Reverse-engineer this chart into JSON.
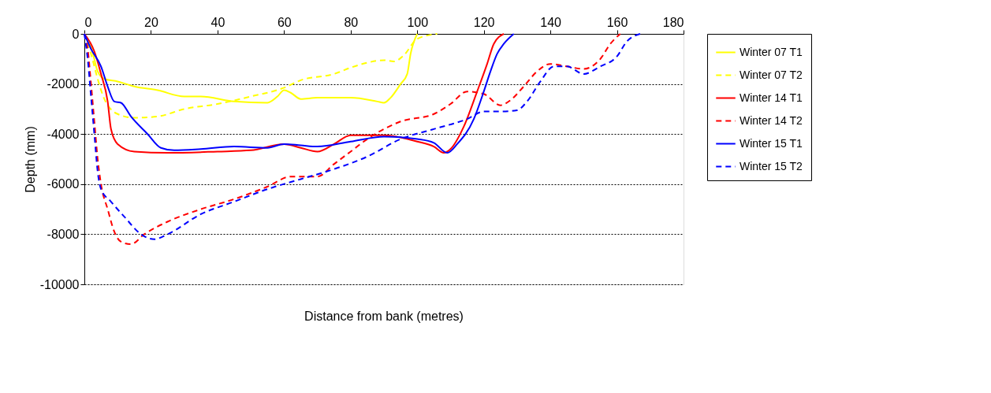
{
  "chart_data": {
    "type": "line",
    "xlabel": "Distance from bank (metres)",
    "ylabel": "Depth (mm)",
    "xlim": [
      0,
      180
    ],
    "xticks": [
      0,
      20,
      40,
      60,
      80,
      100,
      120,
      140,
      160,
      180
    ],
    "ylim": [
      -10000,
      0
    ],
    "yticks": [
      -10000,
      -8000,
      -6000,
      -4000,
      -2000,
      0
    ],
    "grid": "y",
    "legend": "right",
    "marker": "none",
    "series": [
      {
        "name": "Winter 07 T1",
        "color": "#ffff00",
        "line_style": "solid",
        "x": [
          0,
          2,
          4,
          6,
          10,
          15,
          22,
          30,
          35,
          45,
          55,
          58,
          60,
          62,
          65,
          70,
          80,
          88,
          90,
          92,
          95,
          97,
          98,
          100
        ],
        "values": [
          0,
          -500,
          -1500,
          -1800,
          -1900,
          -2100,
          -2250,
          -2500,
          -2500,
          -2700,
          -2750,
          -2500,
          -2250,
          -2350,
          -2600,
          -2550,
          -2550,
          -2700,
          -2750,
          -2550,
          -2000,
          -1600,
          -800,
          0
        ]
      },
      {
        "name": "Winter 07 T2",
        "color": "#ffff00",
        "line_style": "dashed",
        "x": [
          0,
          2,
          4,
          6,
          10,
          15,
          22,
          30,
          40,
          50,
          60,
          65,
          75,
          80,
          85,
          90,
          93,
          96,
          100,
          106
        ],
        "values": [
          0,
          -800,
          -1800,
          -2600,
          -3200,
          -3350,
          -3300,
          -3000,
          -2800,
          -2500,
          -2150,
          -1850,
          -1600,
          -1350,
          -1150,
          -1050,
          -1100,
          -850,
          -200,
          0
        ]
      },
      {
        "name": "Winter 14 T1",
        "color": "#ff0000",
        "line_style": "solid",
        "x": [
          0,
          3,
          5,
          7,
          8,
          10,
          15,
          25,
          40,
          50,
          60,
          65,
          70,
          75,
          80,
          90,
          100,
          105,
          108,
          110,
          114,
          118,
          121,
          123,
          126
        ],
        "values": [
          0,
          -700,
          -1600,
          -2700,
          -3800,
          -4400,
          -4700,
          -4750,
          -4700,
          -4650,
          -4400,
          -4550,
          -4700,
          -4400,
          -4050,
          -4050,
          -4300,
          -4500,
          -4750,
          -4600,
          -3700,
          -2300,
          -1200,
          -400,
          0
        ]
      },
      {
        "name": "Winter 14 T2",
        "color": "#ff0000",
        "line_style": "dashed",
        "x": [
          0,
          1,
          2,
          3,
          4,
          5,
          7,
          9,
          11,
          14,
          18,
          25,
          35,
          45,
          55,
          62,
          70,
          75,
          80,
          85,
          90,
          95,
          105,
          110,
          115,
          120,
          125,
          128,
          132,
          136,
          140,
          145,
          150,
          155,
          158,
          161
        ],
        "values": [
          0,
          -600,
          -2000,
          -3500,
          -5000,
          -6000,
          -7000,
          -7900,
          -8300,
          -8400,
          -8000,
          -7500,
          -7000,
          -6600,
          -6100,
          -5700,
          -5700,
          -5200,
          -4700,
          -4200,
          -3800,
          -3500,
          -3200,
          -2800,
          -2300,
          -2400,
          -2850,
          -2650,
          -2100,
          -1500,
          -1200,
          -1300,
          -1400,
          -1000,
          -400,
          0
        ]
      },
      {
        "name": "Winter 15 T1",
        "color": "#0000ff",
        "line_style": "solid",
        "x": [
          0,
          2,
          5,
          7,
          9,
          11,
          14,
          19,
          23,
          27,
          35,
          45,
          55,
          60,
          65,
          70,
          80,
          90,
          100,
          105,
          109,
          112,
          117,
          120,
          122,
          124,
          126,
          129
        ],
        "values": [
          0,
          -600,
          -1300,
          -2100,
          -2700,
          -2750,
          -3300,
          -4000,
          -4550,
          -4650,
          -4600,
          -4500,
          -4550,
          -4400,
          -4450,
          -4500,
          -4300,
          -4100,
          -4200,
          -4350,
          -4750,
          -4400,
          -3400,
          -2300,
          -1500,
          -800,
          -400,
          0
        ]
      },
      {
        "name": "Winter 15 T2",
        "color": "#0000ff",
        "line_style": "dashed",
        "x": [
          0,
          1,
          2,
          3,
          4,
          5,
          8,
          12,
          17,
          21,
          25,
          35,
          45,
          55,
          65,
          75,
          85,
          95,
          105,
          115,
          120,
          125,
          130,
          133,
          137,
          141,
          145,
          150,
          155,
          160,
          163,
          167
        ],
        "values": [
          0,
          -1000,
          -2500,
          -4000,
          -5500,
          -6200,
          -6700,
          -7300,
          -8000,
          -8200,
          -8000,
          -7200,
          -6700,
          -6200,
          -5800,
          -5400,
          -4900,
          -4200,
          -3800,
          -3400,
          -3100,
          -3100,
          -3050,
          -2700,
          -1900,
          -1300,
          -1300,
          -1600,
          -1300,
          -900,
          -300,
          0
        ]
      }
    ]
  }
}
